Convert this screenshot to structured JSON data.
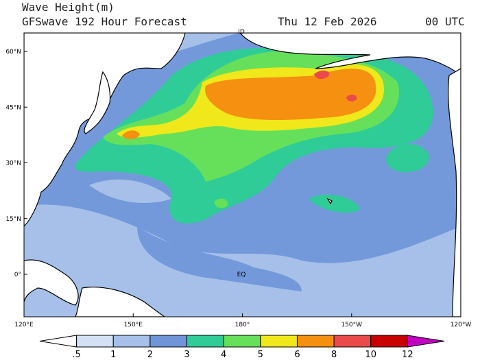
{
  "header": {
    "title": "Wave Height(m)",
    "subtitle": "GFSwave 192 Hour Forecast",
    "date": "Thu 12 Feb 2026",
    "time": "00 UTC"
  },
  "map": {
    "lat_labels": [
      "60°N",
      "45°N",
      "30°N",
      "15°N",
      "0°"
    ],
    "lon_labels": [
      "120°E",
      "150°E",
      "180°",
      "150°W",
      "120°W"
    ],
    "annotations": [
      "ID",
      "EQ"
    ]
  },
  "colorbar": {
    "labels": [
      ".5",
      "1",
      "2",
      "3",
      "4",
      "5",
      "6",
      "8",
      "10",
      "12"
    ],
    "colors": [
      "#ffffff",
      "#d3e1f5",
      "#a6c0ea",
      "#6f94d8",
      "#2fcc98",
      "#66e05a",
      "#f0e81a",
      "#f59010",
      "#ea4a4a",
      "#c80000",
      "#c000c0"
    ]
  }
}
